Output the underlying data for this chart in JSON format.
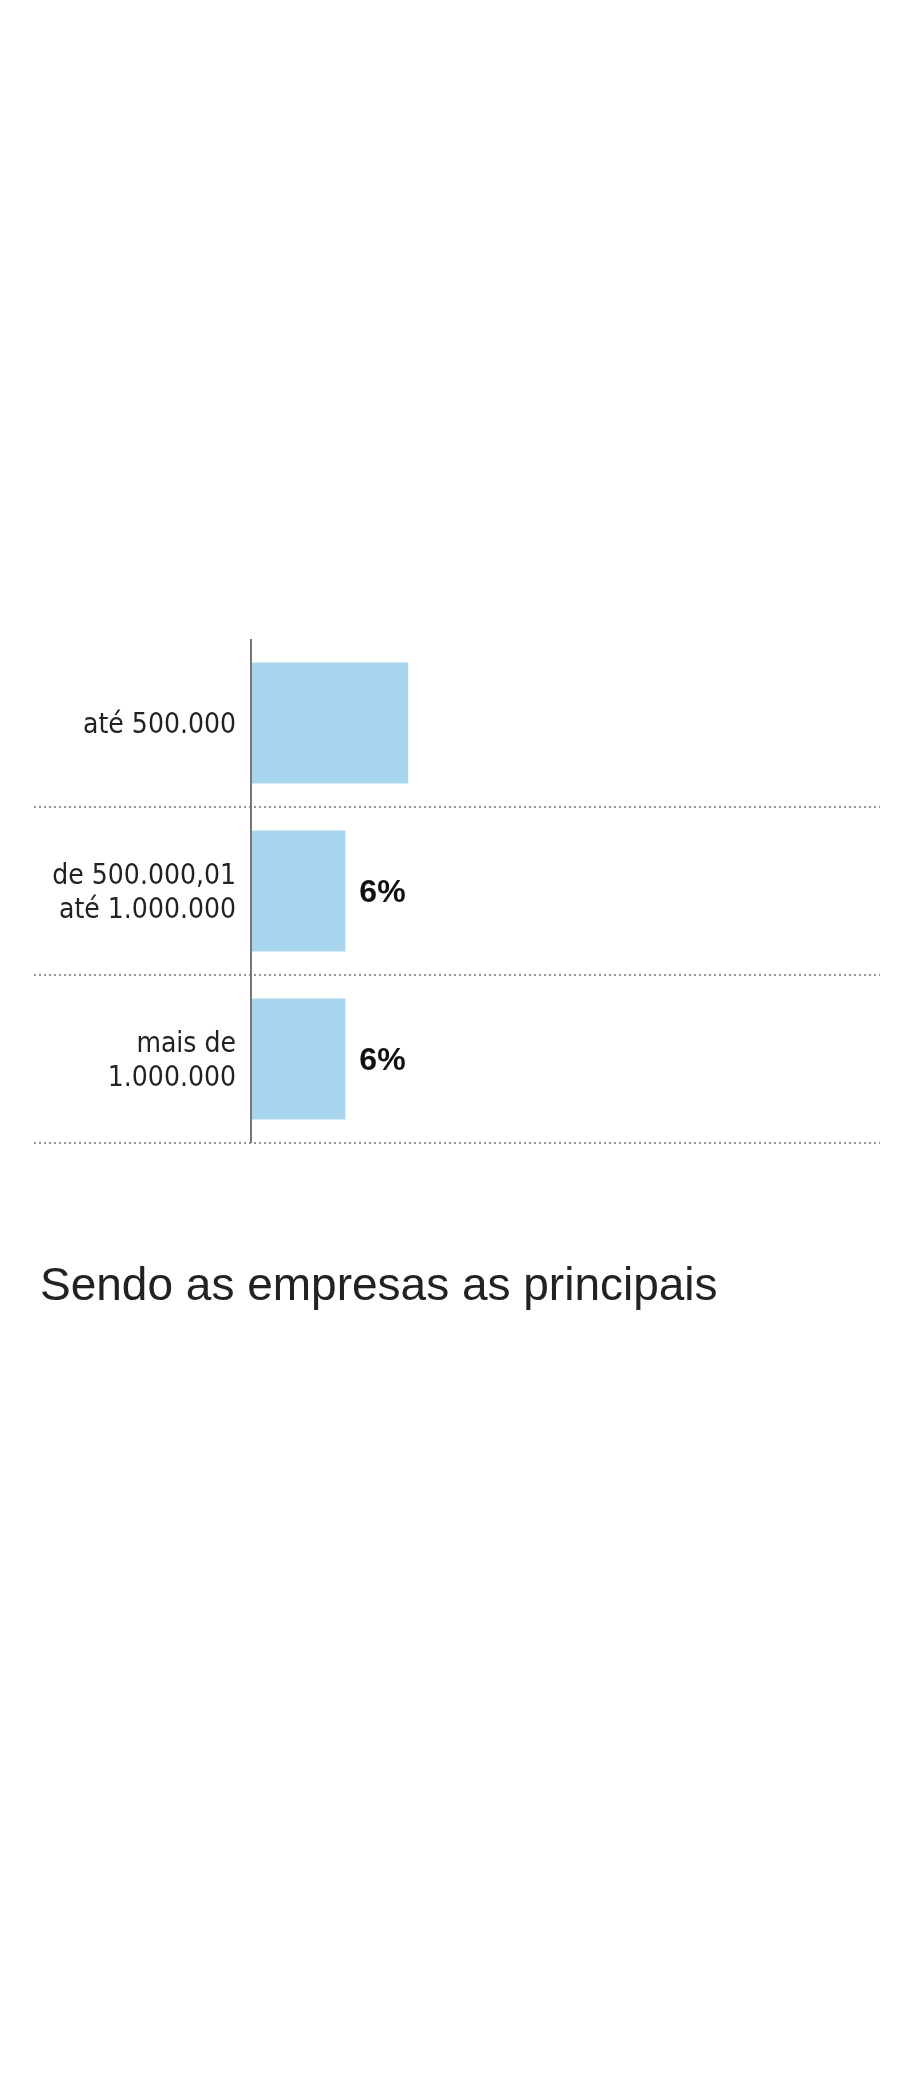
{
  "chart_data": {
    "type": "bar",
    "orientation": "horizontal",
    "categories": [
      "até 500.000",
      "de 500.000,01\naté 1.000.000",
      "mais de\n1.000.000"
    ],
    "values": [
      10,
      6,
      6
    ],
    "color": "#a8d4ee",
    "value_labels": [
      null,
      "6%",
      "6%"
    ],
    "xlim": [
      0,
      40
    ],
    "tick_labels": "y",
    "annotations": [
      "Sendo as empresas as principais"
    ]
  }
}
